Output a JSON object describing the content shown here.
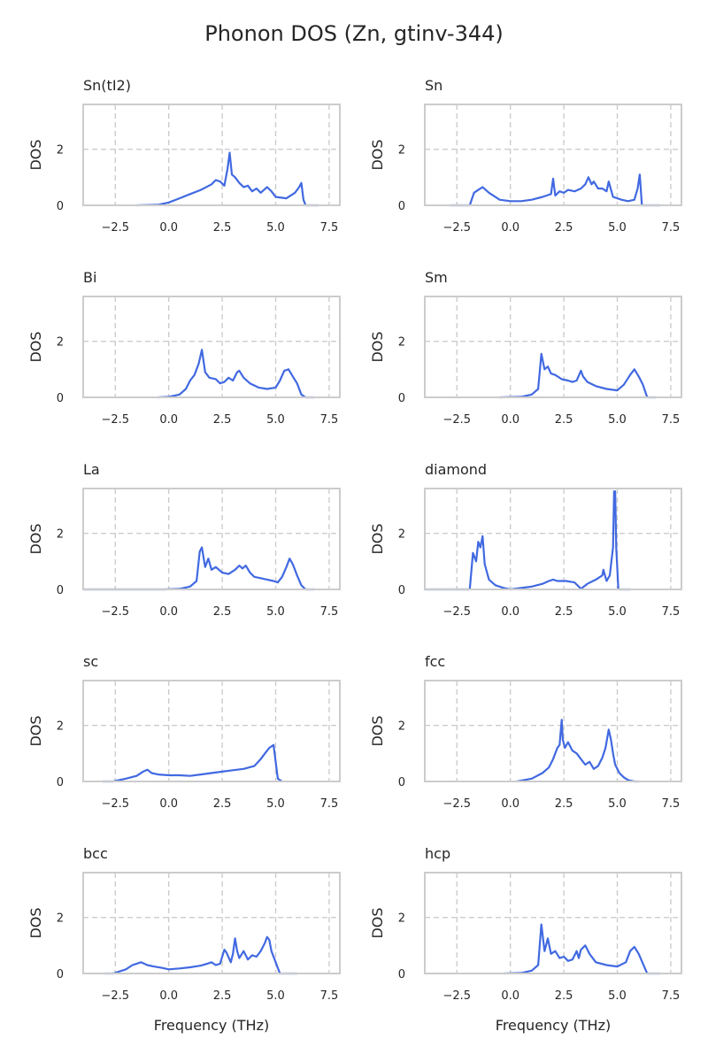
{
  "title": "Phonon DOS (Zn, gtinv-344)",
  "colors": {
    "series": "#4169e1",
    "grid": "#cccccc",
    "frame": "#cccccc",
    "text": "#262626"
  },
  "chart_data": [
    {
      "type": "line",
      "title": "Sn(tI2)",
      "xlabel": "",
      "ylabel": "DOS",
      "xlim": [
        -4,
        8
      ],
      "ylim": [
        0,
        3.6
      ],
      "xticks": [
        -2.5,
        0.0,
        2.5,
        5.0,
        7.5
      ],
      "xtick_labels": [
        "−2.5",
        "0.0",
        "2.5",
        "5.0",
        "7.5"
      ],
      "yticks": [
        0,
        2
      ],
      "ytick_labels": [
        "0",
        "2"
      ],
      "grid": true,
      "series": [
        {
          "color": "#4169e1",
          "x": [
            -1.5,
            -0.5,
            0.0,
            0.5,
            1.0,
            1.5,
            2.0,
            2.2,
            2.4,
            2.6,
            2.75,
            2.85,
            2.95,
            3.1,
            3.3,
            3.5,
            3.7,
            3.9,
            4.1,
            4.3,
            4.6,
            4.8,
            5.0,
            5.5,
            5.9,
            6.1,
            6.2,
            6.3,
            6.4,
            6.6,
            7.0
          ],
          "y": [
            0.0,
            0.02,
            0.1,
            0.25,
            0.4,
            0.55,
            0.75,
            0.9,
            0.85,
            0.7,
            1.3,
            1.88,
            1.1,
            1.0,
            0.8,
            0.65,
            0.7,
            0.5,
            0.6,
            0.45,
            0.65,
            0.5,
            0.3,
            0.25,
            0.45,
            0.65,
            0.8,
            0.2,
            0.0,
            0.0,
            0.0
          ]
        }
      ]
    },
    {
      "type": "line",
      "title": "Sn",
      "xlabel": "",
      "ylabel": "DOS",
      "xlim": [
        -4,
        8
      ],
      "ylim": [
        0,
        3.6
      ],
      "xticks": [
        -2.5,
        0.0,
        2.5,
        5.0,
        7.5
      ],
      "xtick_labels": [
        "−2.5",
        "0.0",
        "2.5",
        "5.0",
        "7.5"
      ],
      "yticks": [
        0,
        2
      ],
      "ytick_labels": [
        "0",
        "2"
      ],
      "grid": true,
      "series": [
        {
          "color": "#4169e1",
          "x": [
            -2.8,
            -1.9,
            -1.7,
            -1.5,
            -1.3,
            -1.0,
            -0.5,
            0.0,
            0.5,
            1.0,
            1.5,
            1.9,
            2.0,
            2.1,
            2.3,
            2.5,
            2.7,
            3.0,
            3.3,
            3.5,
            3.65,
            3.8,
            3.9,
            4.1,
            4.3,
            4.5,
            4.6,
            4.8,
            5.2,
            5.5,
            5.8,
            5.95,
            6.05,
            6.15,
            6.3,
            7.0
          ],
          "y": [
            0.0,
            0.0,
            0.45,
            0.55,
            0.65,
            0.45,
            0.2,
            0.15,
            0.15,
            0.2,
            0.3,
            0.4,
            0.95,
            0.35,
            0.5,
            0.45,
            0.55,
            0.5,
            0.6,
            0.75,
            1.0,
            0.75,
            0.85,
            0.6,
            0.6,
            0.5,
            0.85,
            0.3,
            0.2,
            0.15,
            0.2,
            0.6,
            1.1,
            0.0,
            0.0,
            0.0
          ]
        }
      ]
    },
    {
      "type": "line",
      "title": "Bi",
      "xlabel": "",
      "ylabel": "DOS",
      "xlim": [
        -4,
        8
      ],
      "ylim": [
        0,
        3.6
      ],
      "xticks": [
        -2.5,
        0.0,
        2.5,
        5.0,
        7.5
      ],
      "xtick_labels": [
        "−2.5",
        "0.0",
        "2.5",
        "5.0",
        "7.5"
      ],
      "yticks": [
        0,
        2
      ],
      "ytick_labels": [
        "0",
        "2"
      ],
      "grid": true,
      "series": [
        {
          "color": "#4169e1",
          "x": [
            -0.5,
            0.0,
            0.5,
            0.8,
            1.0,
            1.2,
            1.4,
            1.55,
            1.7,
            1.9,
            2.2,
            2.4,
            2.6,
            2.8,
            3.0,
            3.2,
            3.3,
            3.5,
            3.8,
            4.2,
            4.6,
            5.0,
            5.2,
            5.4,
            5.6,
            5.8,
            6.0,
            6.2,
            6.4,
            6.8
          ],
          "y": [
            0.0,
            0.02,
            0.1,
            0.3,
            0.6,
            0.8,
            1.2,
            1.7,
            0.9,
            0.7,
            0.65,
            0.5,
            0.55,
            0.7,
            0.6,
            0.9,
            0.95,
            0.7,
            0.5,
            0.35,
            0.3,
            0.35,
            0.6,
            0.95,
            1.0,
            0.75,
            0.5,
            0.1,
            0.0,
            0.0
          ]
        }
      ]
    },
    {
      "type": "line",
      "title": "Sm",
      "xlabel": "",
      "ylabel": "DOS",
      "xlim": [
        -4,
        8
      ],
      "ylim": [
        0,
        3.6
      ],
      "xticks": [
        -2.5,
        0.0,
        2.5,
        5.0,
        7.5
      ],
      "xtick_labels": [
        "−2.5",
        "0.0",
        "2.5",
        "5.0",
        "7.5"
      ],
      "yticks": [
        0,
        2
      ],
      "ytick_labels": [
        "0",
        "2"
      ],
      "grid": true,
      "series": [
        {
          "color": "#4169e1",
          "x": [
            -0.5,
            0.5,
            1.0,
            1.3,
            1.45,
            1.6,
            1.75,
            1.9,
            2.1,
            2.4,
            2.7,
            2.9,
            3.1,
            3.3,
            3.4,
            3.6,
            4.0,
            4.5,
            5.0,
            5.3,
            5.6,
            5.8,
            6.0,
            6.2,
            6.4,
            6.8
          ],
          "y": [
            0.0,
            0.02,
            0.1,
            0.3,
            1.55,
            1.0,
            1.1,
            0.85,
            0.8,
            0.65,
            0.6,
            0.55,
            0.6,
            0.95,
            0.75,
            0.55,
            0.4,
            0.3,
            0.25,
            0.45,
            0.8,
            1.0,
            0.75,
            0.45,
            0.0,
            0.0
          ]
        }
      ]
    },
    {
      "type": "line",
      "title": "La",
      "xlabel": "",
      "ylabel": "DOS",
      "xlim": [
        -4,
        8
      ],
      "ylim": [
        0,
        3.6
      ],
      "xticks": [
        -2.5,
        0.0,
        2.5,
        5.0,
        7.5
      ],
      "xtick_labels": [
        "−2.5",
        "0.0",
        "2.5",
        "5.0",
        "7.5"
      ],
      "yticks": [
        0,
        2
      ],
      "ytick_labels": [
        "0",
        "2"
      ],
      "grid": true,
      "series": [
        {
          "color": "#4169e1",
          "x": [
            -4.0,
            -2.0,
            -0.2,
            0.5,
            1.0,
            1.3,
            1.45,
            1.55,
            1.7,
            1.85,
            2.0,
            2.2,
            2.5,
            2.8,
            3.1,
            3.3,
            3.45,
            3.6,
            3.8,
            4.0,
            4.3,
            4.6,
            4.9,
            5.1,
            5.3,
            5.5,
            5.65,
            5.8,
            6.0,
            6.2,
            6.4,
            6.8
          ],
          "y": [
            0.0,
            0.0,
            0.0,
            0.02,
            0.1,
            0.3,
            1.35,
            1.5,
            0.8,
            1.1,
            0.7,
            0.8,
            0.6,
            0.55,
            0.7,
            0.85,
            0.75,
            0.85,
            0.6,
            0.45,
            0.4,
            0.35,
            0.3,
            0.25,
            0.45,
            0.8,
            1.1,
            0.9,
            0.5,
            0.15,
            0.0,
            0.0
          ]
        }
      ]
    },
    {
      "type": "line",
      "title": "diamond",
      "xlabel": "",
      "ylabel": "DOS",
      "xlim": [
        -4,
        8
      ],
      "ylim": [
        0,
        3.6
      ],
      "xticks": [
        -2.5,
        0.0,
        2.5,
        5.0,
        7.5
      ],
      "xtick_labels": [
        "−2.5",
        "0.0",
        "2.5",
        "5.0",
        "7.5"
      ],
      "yticks": [
        0,
        2
      ],
      "ytick_labels": [
        "0",
        "2"
      ],
      "grid": true,
      "series": [
        {
          "color": "#4169e1",
          "x": [
            -4.0,
            -2.5,
            -1.9,
            -1.75,
            -1.6,
            -1.5,
            -1.4,
            -1.3,
            -1.2,
            -1.0,
            -0.7,
            -0.3,
            0.0,
            0.5,
            1.0,
            1.5,
            1.8,
            2.0,
            2.2,
            2.6,
            3.0,
            3.2,
            3.3,
            3.6,
            4.0,
            4.3,
            4.35,
            4.5,
            4.65,
            4.8,
            4.85,
            4.9,
            4.95,
            5.05,
            5.2,
            5.6
          ],
          "y": [
            0.0,
            0.0,
            0.0,
            1.3,
            1.0,
            1.7,
            1.5,
            1.9,
            0.9,
            0.35,
            0.15,
            0.05,
            0.0,
            0.05,
            0.1,
            0.2,
            0.3,
            0.35,
            0.3,
            0.3,
            0.25,
            0.1,
            0.02,
            0.2,
            0.35,
            0.5,
            0.7,
            0.3,
            0.5,
            1.5,
            3.5,
            3.5,
            1.5,
            0.0,
            0.0,
            0.0
          ]
        }
      ]
    },
    {
      "type": "line",
      "title": "sc",
      "xlabel": "",
      "ylabel": "DOS",
      "xlim": [
        -4,
        8
      ],
      "ylim": [
        0,
        3.6
      ],
      "xticks": [
        -2.5,
        0.0,
        2.5,
        5.0,
        7.5
      ],
      "xtick_labels": [
        "−2.5",
        "0.0",
        "2.5",
        "5.0",
        "7.5"
      ],
      "yticks": [
        0,
        2
      ],
      "ytick_labels": [
        "0",
        "2"
      ],
      "grid": true,
      "series": [
        {
          "color": "#4169e1",
          "x": [
            -3.1,
            -2.6,
            -2.0,
            -1.5,
            -1.2,
            -1.0,
            -0.8,
            -0.5,
            0.0,
            0.5,
            1.0,
            1.5,
            2.0,
            2.5,
            3.0,
            3.5,
            4.0,
            4.3,
            4.5,
            4.7,
            4.8,
            4.9,
            5.0,
            5.1,
            5.3
          ],
          "y": [
            0.0,
            0.0,
            0.1,
            0.2,
            0.35,
            0.42,
            0.3,
            0.25,
            0.22,
            0.22,
            0.2,
            0.25,
            0.3,
            0.35,
            0.4,
            0.45,
            0.55,
            0.8,
            1.0,
            1.2,
            1.25,
            1.3,
            0.7,
            0.1,
            0.0
          ]
        }
      ]
    },
    {
      "type": "line",
      "title": "fcc",
      "xlabel": "",
      "ylabel": "DOS",
      "xlim": [
        -4,
        8
      ],
      "ylim": [
        0,
        3.6
      ],
      "xticks": [
        -2.5,
        0.0,
        2.5,
        5.0,
        7.5
      ],
      "xtick_labels": [
        "−2.5",
        "0.0",
        "2.5",
        "5.0",
        "7.5"
      ],
      "yticks": [
        0,
        2
      ],
      "ytick_labels": [
        "0",
        "2"
      ],
      "grid": true,
      "series": [
        {
          "color": "#4169e1",
          "x": [
            0.3,
            1.0,
            1.5,
            1.8,
            2.0,
            2.2,
            2.3,
            2.4,
            2.45,
            2.55,
            2.7,
            2.9,
            3.1,
            3.3,
            3.5,
            3.7,
            3.9,
            4.1,
            4.3,
            4.45,
            4.6,
            4.7,
            4.8,
            4.9,
            5.1,
            5.3,
            5.5,
            5.8,
            6.0
          ],
          "y": [
            0.0,
            0.1,
            0.3,
            0.5,
            0.8,
            1.2,
            1.3,
            2.2,
            1.5,
            1.2,
            1.4,
            1.1,
            1.0,
            0.8,
            0.6,
            0.7,
            0.45,
            0.55,
            0.85,
            1.2,
            1.85,
            1.5,
            1.0,
            0.6,
            0.3,
            0.15,
            0.05,
            0.0,
            0.0
          ]
        }
      ]
    },
    {
      "type": "line",
      "title": "bcc",
      "xlabel": "",
      "ylabel": "DOS",
      "xlim": [
        -4,
        8
      ],
      "ylim": [
        0,
        3.6
      ],
      "xticks": [
        -2.5,
        0.0,
        2.5,
        5.0,
        7.5
      ],
      "xtick_labels": [
        "−2.5",
        "0.0",
        "2.5",
        "5.0",
        "7.5"
      ],
      "yticks": [
        0,
        2
      ],
      "ytick_labels": [
        "0",
        "2"
      ],
      "grid": true,
      "series": [
        {
          "color": "#4169e1",
          "x": [
            -3.0,
            -2.6,
            -2.0,
            -1.7,
            -1.5,
            -1.3,
            -1.0,
            -0.7,
            -0.3,
            0.0,
            0.5,
            1.0,
            1.5,
            1.8,
            2.0,
            2.2,
            2.4,
            2.6,
            2.7,
            2.9,
            3.0,
            3.1,
            3.2,
            3.3,
            3.5,
            3.7,
            3.9,
            4.1,
            4.3,
            4.5,
            4.6,
            4.7,
            4.8,
            5.0,
            5.2,
            6.0
          ],
          "y": [
            0.0,
            0.0,
            0.15,
            0.3,
            0.35,
            0.4,
            0.3,
            0.25,
            0.2,
            0.15,
            0.18,
            0.22,
            0.28,
            0.35,
            0.4,
            0.3,
            0.35,
            0.85,
            0.75,
            0.4,
            0.7,
            1.25,
            0.8,
            0.55,
            0.8,
            0.5,
            0.65,
            0.6,
            0.8,
            1.1,
            1.3,
            1.2,
            0.8,
            0.4,
            0.0,
            0.0
          ]
        }
      ]
    },
    {
      "type": "line",
      "title": "hcp",
      "xlabel": "",
      "ylabel": "DOS",
      "xlim": [
        -4,
        8
      ],
      "ylim": [
        0,
        3.6
      ],
      "xticks": [
        -2.5,
        0.0,
        2.5,
        5.0,
        7.5
      ],
      "xtick_labels": [
        "−2.5",
        "0.0",
        "2.5",
        "5.0",
        "7.5"
      ],
      "yticks": [
        0,
        2
      ],
      "ytick_labels": [
        "0",
        "2"
      ],
      "grid": true,
      "series": [
        {
          "color": "#4169e1",
          "x": [
            -0.3,
            0.5,
            1.0,
            1.3,
            1.45,
            1.6,
            1.75,
            1.9,
            2.1,
            2.3,
            2.5,
            2.7,
            2.9,
            3.1,
            3.2,
            3.3,
            3.5,
            3.7,
            4.0,
            4.5,
            5.0,
            5.4,
            5.6,
            5.8,
            6.0,
            6.2,
            6.4,
            7.0
          ],
          "y": [
            0.0,
            0.02,
            0.1,
            0.3,
            1.75,
            0.8,
            1.25,
            0.7,
            0.8,
            0.55,
            0.6,
            0.45,
            0.5,
            0.8,
            0.55,
            0.85,
            1.0,
            0.7,
            0.4,
            0.3,
            0.25,
            0.4,
            0.8,
            0.95,
            0.7,
            0.35,
            0.0,
            0.0
          ]
        }
      ]
    }
  ]
}
